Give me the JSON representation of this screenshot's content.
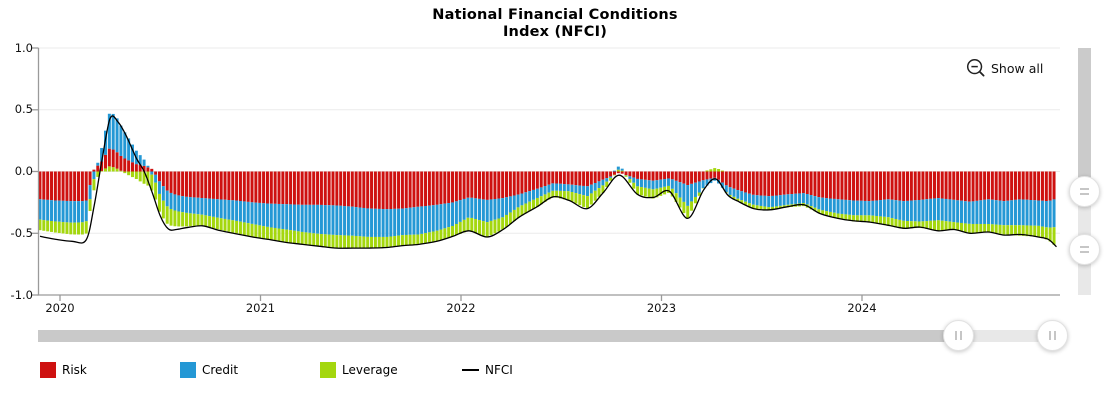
{
  "header": {
    "title_line1": "National Financial Conditions",
    "title_line2": "Index (NFCI)"
  },
  "controls": {
    "show_all_label": "Show all",
    "icons": {
      "show_all": "zoom-out-magnifier-icon",
      "bottom_slider_handles": "vertical-grip-drag-handle-icon",
      "right_slider_handles": "horizontal-grip-drag-handle-icon"
    }
  },
  "legend": {
    "items": [
      {
        "label": "Risk",
        "color": "#ce1110",
        "marker": "bar-swatch"
      },
      {
        "label": "Credit",
        "color": "#2498d5",
        "marker": "bar-swatch"
      },
      {
        "label": "Leverage",
        "color": "#a4d70e",
        "marker": "bar-swatch"
      },
      {
        "label": "NFCI",
        "color": "#000000",
        "marker": "line"
      }
    ]
  },
  "chart_data": {
    "type": "bar",
    "subtype": "stacked-weekly-bars-with-line-overlay",
    "title": "National Financial Conditions Index (NFCI)",
    "xlabel": "",
    "ylabel": "",
    "ylim": [
      -1.0,
      1.0
    ],
    "grid": true,
    "legend_position": "bottom",
    "y_tick_values": [
      1.0,
      0.5,
      0.0,
      -0.5,
      -1.0
    ],
    "y_tick_labels": [
      "1.0",
      "0.5",
      "0.0",
      "-0.5",
      "-1.0"
    ],
    "x_tick_values": [
      2020,
      2021,
      2022,
      2023,
      2024
    ],
    "x_tick_labels": [
      "2020",
      "2021",
      "2022",
      "2023",
      "2024"
    ],
    "x_range": [
      2019.9,
      2024.968
    ],
    "bar_step_years": 0.019231,
    "series": [
      {
        "name": "Risk",
        "type": "bar",
        "color": "#ce1110"
      },
      {
        "name": "Credit",
        "type": "bar",
        "color": "#2498d5"
      },
      {
        "name": "Leverage",
        "type": "bar",
        "color": "#a4d70e"
      },
      {
        "name": "NFCI",
        "type": "line",
        "color": "#000000"
      }
    ],
    "anchors": {
      "t": [
        2019.9,
        2019.98,
        2020.06,
        2020.13,
        2020.17,
        2020.21,
        2020.25,
        2020.29,
        2020.33,
        2020.38,
        2020.42,
        2020.46,
        2020.5,
        2020.54,
        2020.58,
        2020.63,
        2020.71,
        2020.79,
        2020.88,
        2020.96,
        2021.04,
        2021.13,
        2021.21,
        2021.29,
        2021.38,
        2021.46,
        2021.54,
        2021.63,
        2021.71,
        2021.79,
        2021.88,
        2021.96,
        2022.04,
        2022.13,
        2022.21,
        2022.29,
        2022.38,
        2022.46,
        2022.54,
        2022.63,
        2022.71,
        2022.79,
        2022.88,
        2022.96,
        2023.04,
        2023.13,
        2023.21,
        2023.27,
        2023.33,
        2023.38,
        2023.46,
        2023.54,
        2023.63,
        2023.71,
        2023.79,
        2023.88,
        2023.96,
        2024.04,
        2024.13,
        2024.21,
        2024.29,
        2024.38,
        2024.46,
        2024.54,
        2024.63,
        2024.71,
        2024.79,
        2024.88,
        2024.93,
        2024.97
      ],
      "risk": [
        -0.225,
        -0.235,
        -0.24,
        -0.24,
        0.02,
        0.08,
        0.15,
        0.13,
        0.1,
        0.06,
        0.045,
        0.02,
        -0.09,
        -0.165,
        -0.19,
        -0.205,
        -0.215,
        -0.225,
        -0.235,
        -0.25,
        -0.26,
        -0.265,
        -0.27,
        -0.27,
        -0.275,
        -0.285,
        -0.3,
        -0.305,
        -0.3,
        -0.285,
        -0.27,
        -0.25,
        -0.21,
        -0.23,
        -0.215,
        -0.185,
        -0.14,
        -0.095,
        -0.105,
        -0.12,
        -0.065,
        -0.01,
        -0.06,
        -0.075,
        -0.055,
        -0.11,
        -0.07,
        -0.05,
        -0.12,
        -0.15,
        -0.19,
        -0.2,
        -0.185,
        -0.175,
        -0.21,
        -0.225,
        -0.235,
        -0.24,
        -0.225,
        -0.24,
        -0.23,
        -0.215,
        -0.23,
        -0.245,
        -0.225,
        -0.24,
        -0.225,
        -0.235,
        -0.24,
        -0.22
      ],
      "credit": [
        -0.165,
        -0.17,
        -0.175,
        -0.17,
        -0.06,
        0.12,
        0.3,
        0.27,
        0.2,
        0.11,
        0.05,
        -0.03,
        -0.11,
        -0.13,
        -0.13,
        -0.13,
        -0.135,
        -0.15,
        -0.165,
        -0.175,
        -0.19,
        -0.205,
        -0.22,
        -0.235,
        -0.24,
        -0.235,
        -0.23,
        -0.225,
        -0.215,
        -0.225,
        -0.21,
        -0.19,
        -0.16,
        -0.18,
        -0.155,
        -0.1,
        -0.075,
        -0.06,
        -0.055,
        -0.08,
        -0.045,
        0.03,
        -0.06,
        -0.07,
        -0.06,
        -0.17,
        -0.06,
        -0.02,
        -0.06,
        -0.07,
        -0.08,
        -0.09,
        -0.085,
        -0.08,
        -0.1,
        -0.115,
        -0.12,
        -0.115,
        -0.145,
        -0.16,
        -0.175,
        -0.18,
        -0.18,
        -0.18,
        -0.2,
        -0.195,
        -0.21,
        -0.205,
        -0.215,
        -0.23
      ],
      "leverage": [
        -0.085,
        -0.09,
        -0.095,
        -0.1,
        -0.09,
        0.01,
        0.045,
        0.02,
        -0.02,
        -0.06,
        -0.1,
        -0.13,
        -0.145,
        -0.14,
        -0.125,
        -0.11,
        -0.085,
        -0.095,
        -0.1,
        -0.105,
        -0.1,
        -0.105,
        -0.1,
        -0.1,
        -0.105,
        -0.1,
        -0.09,
        -0.085,
        -0.085,
        -0.08,
        -0.085,
        -0.085,
        -0.11,
        -0.12,
        -0.1,
        -0.085,
        -0.07,
        -0.05,
        -0.075,
        -0.1,
        -0.06,
        0.02,
        -0.065,
        -0.075,
        -0.055,
        -0.1,
        0.0,
        0.03,
        -0.01,
        -0.02,
        -0.03,
        -0.02,
        -0.02,
        -0.025,
        -0.03,
        -0.04,
        -0.05,
        -0.055,
        -0.07,
        -0.065,
        -0.05,
        -0.085,
        -0.06,
        -0.075,
        -0.065,
        -0.075,
        -0.085,
        -0.09,
        -0.1,
        -0.16
      ],
      "nfci": [
        -0.525,
        -0.55,
        -0.565,
        -0.555,
        -0.28,
        0.1,
        0.43,
        0.4,
        0.29,
        0.11,
        0.0,
        -0.17,
        -0.36,
        -0.465,
        -0.47,
        -0.455,
        -0.44,
        -0.475,
        -0.505,
        -0.53,
        -0.55,
        -0.575,
        -0.59,
        -0.605,
        -0.62,
        -0.62,
        -0.62,
        -0.615,
        -0.6,
        -0.59,
        -0.565,
        -0.525,
        -0.48,
        -0.53,
        -0.47,
        -0.37,
        -0.285,
        -0.205,
        -0.235,
        -0.3,
        -0.17,
        -0.03,
        -0.185,
        -0.21,
        -0.16,
        -0.38,
        -0.15,
        -0.06,
        -0.19,
        -0.24,
        -0.3,
        -0.31,
        -0.285,
        -0.27,
        -0.34,
        -0.38,
        -0.4,
        -0.41,
        -0.435,
        -0.46,
        -0.45,
        -0.48,
        -0.47,
        -0.5,
        -0.49,
        -0.515,
        -0.51,
        -0.53,
        -0.55,
        -0.61
      ]
    }
  }
}
